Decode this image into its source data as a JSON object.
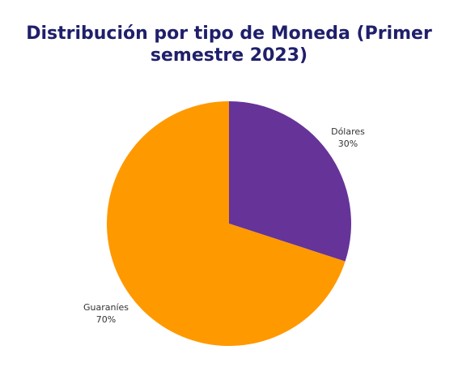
{
  "chart_data": {
    "type": "pie",
    "title": "Distribución por tipo de Moneda (Primer semestre 2023)",
    "title_lines": [
      "Distribución por tipo de Moneda (Primer",
      "semestre 2023)"
    ],
    "slices": [
      {
        "label": "Dólares",
        "value": 30,
        "value_label": "30%",
        "color": "#663399"
      },
      {
        "label": "Guaraníes",
        "value": 70,
        "value_label": "70%",
        "color": "#ff9900"
      }
    ],
    "start_angle": "12 o'clock",
    "direction": "clockwise",
    "legend": "none"
  }
}
